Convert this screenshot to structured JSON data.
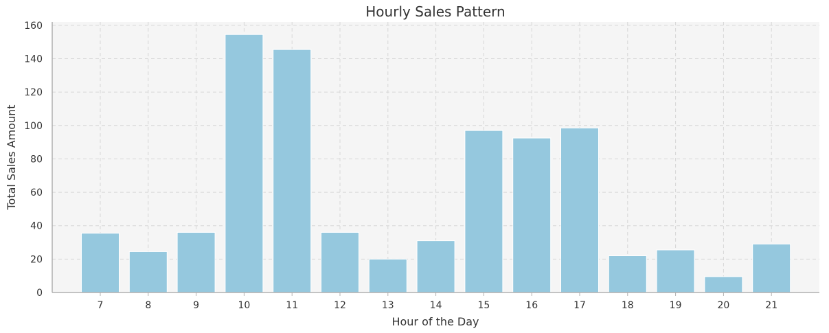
{
  "chart_data": {
    "type": "bar",
    "title": "Hourly Sales Pattern",
    "xlabel": "Hour of the Day",
    "ylabel": "Total Sales Amount",
    "categories": [
      "7",
      "8",
      "9",
      "10",
      "11",
      "12",
      "13",
      "14",
      "15",
      "16",
      "17",
      "18",
      "19",
      "20",
      "21"
    ],
    "values": [
      35.5,
      24.5,
      36,
      154.5,
      145.5,
      36,
      20,
      31,
      97,
      92.5,
      98.5,
      22,
      25.5,
      9.5,
      29
    ],
    "ylim": [
      0,
      162
    ],
    "yticks": [
      0,
      20,
      40,
      60,
      80,
      100,
      120,
      140,
      160
    ],
    "grid": true,
    "colors": {
      "bar": "#95c8de",
      "plot_background": "#f5f5f5",
      "grid": "#d6d6d6",
      "axis": "#b0b0b0"
    }
  }
}
